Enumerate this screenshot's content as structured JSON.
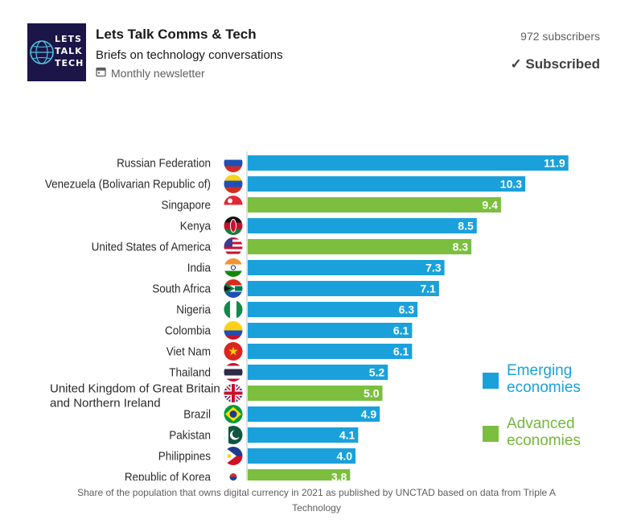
{
  "newsletter": {
    "logo_text": "LETS TALK TECH",
    "title": "Lets Talk Comms & Tech",
    "description": "Briefs on technology conversations",
    "frequency_icon": "calendar-icon",
    "frequency": "Monthly newsletter",
    "subscribers": "972 subscribers",
    "subscribed_label": "✓ Subscribed"
  },
  "colors": {
    "emerging": "#1aa1dc",
    "advanced": "#7cbf3f",
    "logo_bg": "#1c1547",
    "legend_text_emerging": "#1aa1dc",
    "legend_text_advanced": "#74b83a"
  },
  "chart_data": {
    "type": "bar",
    "orientation": "horizontal",
    "categories": [
      "Russian Federation",
      "Venezuela (Bolivarian Republic of)",
      "Singapore",
      "Kenya",
      "United States of America",
      "India",
      "South Africa",
      "Nigeria",
      "Colombia",
      "Viet Nam",
      "Thailand",
      "United Kingdom of Great Britain and Northern Ireland",
      "Brazil",
      "Pakistan",
      "Philippines",
      "Republic of Korea"
    ],
    "values": [
      11.9,
      10.3,
      9.4,
      8.5,
      8.3,
      7.3,
      7.1,
      6.3,
      6.1,
      6.1,
      5.2,
      5.0,
      4.9,
      4.1,
      4.0,
      3.8
    ],
    "value_labels": [
      "11.9",
      "10.3",
      "9.4",
      "8.5",
      "8.3",
      "7.3",
      "7.1",
      "6.3",
      "6.1",
      "6.1",
      "5.2",
      "5.0",
      "4.9",
      "4.1",
      "4.0",
      "3.8"
    ],
    "group": [
      "Emerging economies",
      "Emerging economies",
      "Advanced economies",
      "Emerging economies",
      "Advanced economies",
      "Emerging economies",
      "Emerging economies",
      "Emerging economies",
      "Emerging economies",
      "Emerging economies",
      "Emerging economies",
      "Advanced economies",
      "Emerging economies",
      "Emerging economies",
      "Emerging economies",
      "Advanced economies"
    ],
    "flag_icons": [
      "russia-flag-icon",
      "venezuela-flag-icon",
      "singapore-flag-icon",
      "kenya-flag-icon",
      "usa-flag-icon",
      "india-flag-icon",
      "south-africa-flag-icon",
      "nigeria-flag-icon",
      "colombia-flag-icon",
      "vietnam-flag-icon",
      "thailand-flag-icon",
      "uk-flag-icon",
      "brazil-flag-icon",
      "pakistan-flag-icon",
      "philippines-flag-icon",
      "korea-flag-icon"
    ],
    "legend": [
      {
        "line1": "Emerging",
        "line2": "economies",
        "color": "#1aa1dc"
      },
      {
        "line1": "Advanced",
        "line2": "economies",
        "color": "#7cbf3f"
      }
    ],
    "legend_position": "right",
    "xlim": [
      0,
      12.9
    ],
    "grid": false
  },
  "caption": "Share of the population that owns digital currency in 2021 as published by UNCTAD based on data from Triple A Technology"
}
